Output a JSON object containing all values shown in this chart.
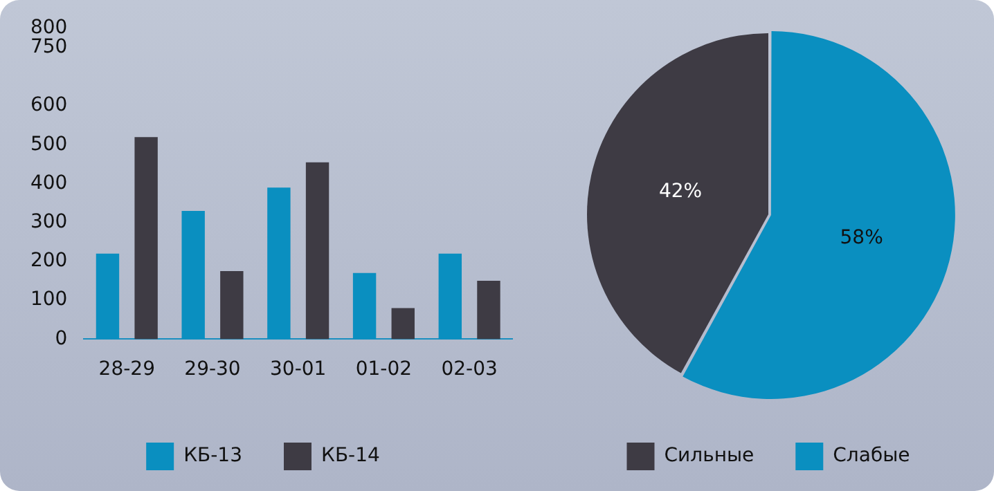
{
  "chart_data": [
    {
      "type": "bar",
      "categories": [
        "28-29",
        "29-30",
        "30-01",
        "01-02",
        "02-03"
      ],
      "series": [
        {
          "name": "КБ-13",
          "color": "#0a8fc0",
          "values": [
            220,
            330,
            390,
            170,
            220
          ]
        },
        {
          "name": "КБ-14",
          "color": "#3e3b44",
          "values": [
            520,
            175,
            455,
            80,
            150
          ]
        }
      ],
      "ylim": [
        0,
        800
      ],
      "yticks": [
        0,
        100,
        200,
        300,
        400,
        500,
        600,
        750,
        800
      ],
      "grid": false,
      "legend": "bottom"
    },
    {
      "type": "pie",
      "categories": [
        "Сильные",
        "Слабые"
      ],
      "values": [
        42,
        58
      ],
      "colors": [
        "#3e3b44",
        "#0a8fc0"
      ],
      "value_labels": [
        "42%",
        "58%"
      ],
      "legend": "bottom"
    }
  ]
}
